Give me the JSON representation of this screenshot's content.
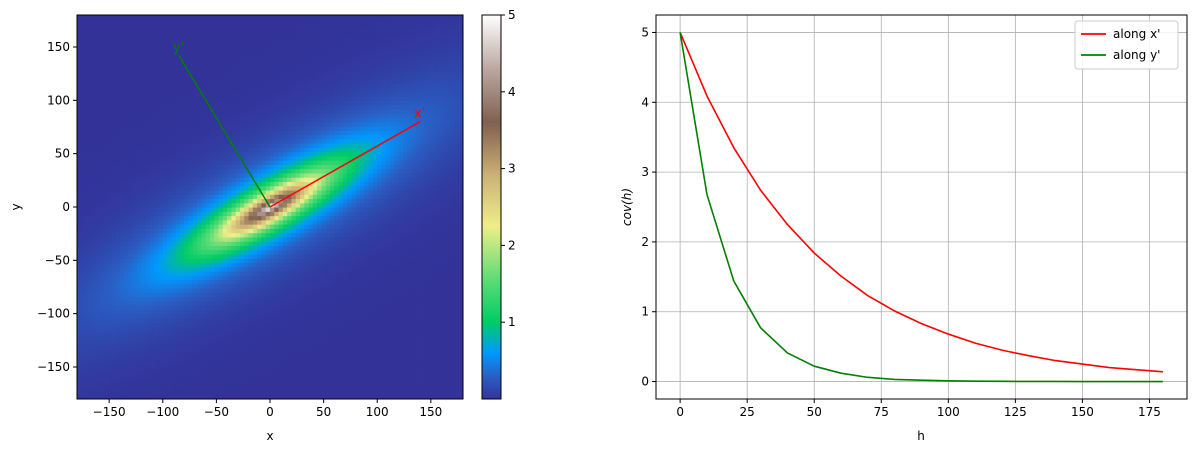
{
  "chart_data": [
    {
      "type": "heatmap",
      "title": "",
      "xlabel": "x",
      "ylabel": "y",
      "xlim": [
        -180,
        180
      ],
      "ylim": [
        -180,
        180
      ],
      "xticks": [
        -150,
        -100,
        -50,
        0,
        50,
        100,
        150
      ],
      "yticks": [
        -150,
        -100,
        -50,
        0,
        50,
        100,
        150
      ],
      "colormap": "terrain",
      "colorbar": {
        "ticks": [
          1,
          2,
          3,
          4,
          5
        ],
        "range": [
          0,
          5
        ]
      },
      "field": {
        "description_values": {
          "peak": 5,
          "major_axis_range": 80,
          "minor_axis_range": 20,
          "rotation_deg": 30
        }
      },
      "annotations": [
        {
          "label": "x'",
          "color": "#ff0000",
          "from": [
            0,
            0
          ],
          "to": [
            140,
            80
          ]
        },
        {
          "label": "y'",
          "color": "#008000",
          "from": [
            0,
            0
          ],
          "to": [
            -85,
            142
          ]
        }
      ]
    },
    {
      "type": "line",
      "title": "",
      "xlabel": "h",
      "ylabel": "cov(h)",
      "xlim": [
        -9,
        189
      ],
      "ylim": [
        -0.25,
        5.25
      ],
      "xticks": [
        0,
        25,
        50,
        75,
        100,
        125,
        150,
        175
      ],
      "yticks": [
        0,
        1,
        2,
        3,
        4,
        5
      ],
      "grid": true,
      "legend_position": "top-right",
      "x": [
        0,
        10,
        20,
        30,
        40,
        50,
        60,
        70,
        80,
        90,
        100,
        110,
        120,
        130,
        140,
        150,
        160,
        170,
        180
      ],
      "series": [
        {
          "name": "along x'",
          "color": "#ff0000",
          "values": [
            5.0,
            4.09,
            3.35,
            2.74,
            2.25,
            1.84,
            1.51,
            1.23,
            1.01,
            0.83,
            0.68,
            0.55,
            0.45,
            0.37,
            0.3,
            0.25,
            0.2,
            0.17,
            0.14
          ]
        },
        {
          "name": "along y'",
          "color": "#008000",
          "values": [
            5.0,
            2.68,
            1.44,
            0.77,
            0.41,
            0.22,
            0.12,
            0.06,
            0.03,
            0.02,
            0.01,
            0.005,
            0.003,
            0.001,
            0.001,
            0.0,
            0.0,
            0.0,
            0.0
          ]
        }
      ]
    }
  ]
}
